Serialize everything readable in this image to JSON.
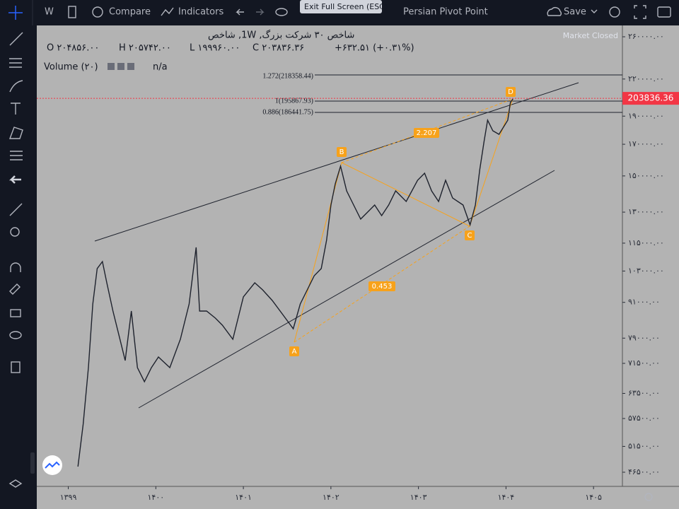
{
  "toolbar": {
    "interval": "W",
    "compare": "Compare",
    "indicators": "Indicators",
    "tooltip": "Exit Full Screen (ESC)",
    "layout_name": "Persian Pivot Point",
    "save": "Save"
  },
  "legend": {
    "symbol": "شاخص ۳۰ شرکت بزرگ, 1W, شاخص",
    "ohlc": [
      "O ۲۰۴۸۵۶.۰۰",
      "H ۲۰۵۷۴۲.۰۰",
      "L ۱۹۹۹۶۰.۰۰",
      "C ۲۰۳۸۳۶.۳۶",
      "+۶۳۲.۵۱ (+۰.۳۱%)"
    ],
    "volume": "Volume (۲۰)",
    "volume_value": "n/a",
    "status": "Market Closed"
  },
  "chart": {
    "type": "line",
    "log_scale": true,
    "color": "#1e222d",
    "xlim": [
      1398.64,
      1405.33
    ],
    "ylim": [
      43970,
      271900
    ],
    "xticks": [
      {
        "value": 1399,
        "label": "۱۳۹۹"
      },
      {
        "value": 1400,
        "label": "۱۴۰۰"
      },
      {
        "value": 1401,
        "label": "۱۴۰۱"
      },
      {
        "value": 1402,
        "label": "۱۴۰۲"
      },
      {
        "value": 1403,
        "label": "۱۴۰۳"
      },
      {
        "value": 1404,
        "label": "۱۴۰۴"
      },
      {
        "value": 1405,
        "label": "۱۴۰۵"
      }
    ],
    "yticks": [
      {
        "value": 260000,
        "label": "۲۶۰۰۰۰.۰۰"
      },
      {
        "value": 220000,
        "label": "۲۲۰۰۰۰.۰۰"
      },
      {
        "value": 190000,
        "label": "۱۹۰۰۰۰.۰۰"
      },
      {
        "value": 170000,
        "label": "۱۷۰۰۰۰.۰۰"
      },
      {
        "value": 150000,
        "label": "۱۵۰۰۰۰.۰۰"
      },
      {
        "value": 130000,
        "label": "۱۳۰۰۰۰.۰۰"
      },
      {
        "value": 115000,
        "label": "۱۱۵۰۰۰.۰۰"
      },
      {
        "value": 103000,
        "label": "۱۰۳۰۰۰.۰۰"
      },
      {
        "value": 91000,
        "label": "۹۱۰۰۰.۰۰"
      },
      {
        "value": 79000,
        "label": "۷۹۰۰۰.۰۰"
      },
      {
        "value": 71500,
        "label": "۷۱۵۰۰.۰۰"
      },
      {
        "value": 63500,
        "label": "۶۳۵۰۰.۰۰"
      },
      {
        "value": 57500,
        "label": "۵۷۵۰۰.۰۰"
      },
      {
        "value": 51500,
        "label": "۵۱۵۰۰.۰۰"
      },
      {
        "value": 46500,
        "label": "۴۶۵۰۰.۰۰"
      }
    ],
    "price": {
      "time": [
        1399.11,
        1399.17,
        1399.23,
        1399.28,
        1399.33,
        1399.39,
        1399.44,
        1399.51,
        1399.59,
        1399.65,
        1399.72,
        1399.79,
        1399.87,
        1399.95,
        1400.03,
        1400.16,
        1400.28,
        1400.38,
        1400.46,
        1400.5,
        1400.58,
        1400.68,
        1400.76,
        1400.88,
        1401.0,
        1401.13,
        1401.22,
        1401.33,
        1401.45,
        1401.57,
        1401.65,
        1401.73,
        1401.81,
        1401.89,
        1401.95,
        1402.0,
        1402.05,
        1402.11,
        1402.18,
        1402.26,
        1402.34,
        1402.42,
        1402.5,
        1402.58,
        1402.66,
        1402.74,
        1402.86,
        1402.99,
        1403.07,
        1403.15,
        1403.23,
        1403.31,
        1403.39,
        1403.51,
        1403.59,
        1403.65,
        1403.7,
        1403.75,
        1403.79,
        1403.85,
        1403.92,
        1403.97,
        1404.02,
        1404.05,
        1404.08
      ],
      "close": [
        47550,
        56230,
        70320,
        90420,
        104000,
        106930,
        98330,
        87930,
        78640,
        72310,
        87930,
        70320,
        66510,
        70320,
        73330,
        70320,
        78640,
        90420,
        113100,
        87930,
        87930,
        85510,
        83150,
        78640,
        93000,
        98330,
        95620,
        91700,
        86710,
        82000,
        90420,
        95620,
        101110,
        104000,
        116310,
        133700,
        145400,
        155940,
        141400,
        133700,
        126460,
        130040,
        133700,
        128230,
        133700,
        141400,
        135580,
        147450,
        151630,
        141400,
        135580,
        147450,
        137460,
        133700,
        123650,
        133700,
        153760,
        171960,
        186980,
        179300,
        176810,
        181830,
        186980,
        200530,
        203360
      ]
    },
    "last_price": {
      "value": 203836.36,
      "label": "203836.36",
      "color": "#f23645"
    },
    "fib_levels": [
      "1.272(218358.44)",
      "1(195867.93)",
      "0.886(186441.75)"
    ],
    "pattern_points": [
      "A",
      "B",
      "C",
      "D"
    ],
    "pattern_ratios": [
      "2.207",
      "0.453"
    ]
  }
}
